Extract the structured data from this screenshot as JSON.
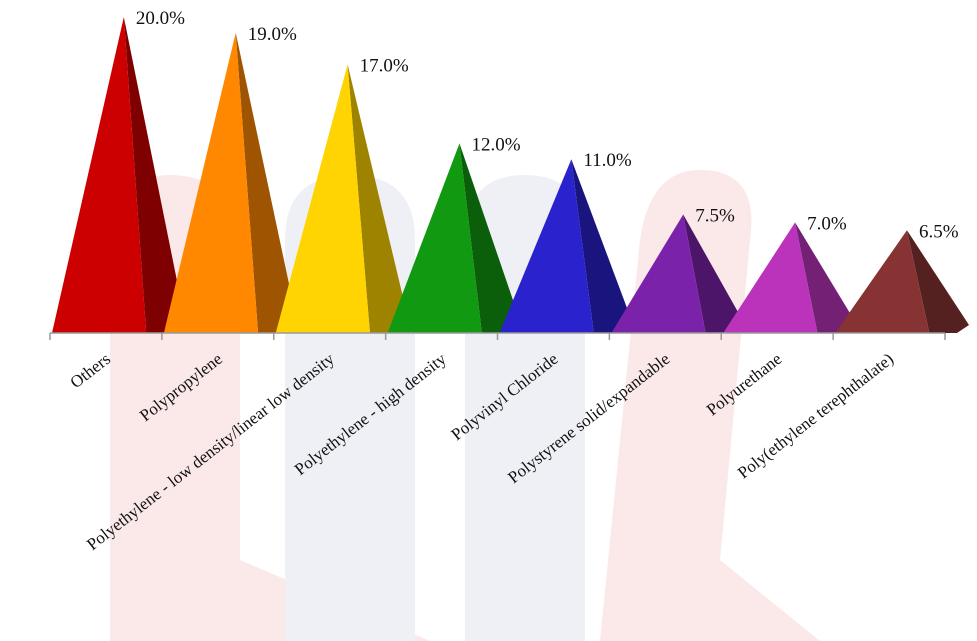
{
  "chart_data": {
    "type": "bar",
    "style": "pyramid",
    "categories": [
      "Others",
      "Polypropylene",
      "Polyethylene - low density/linear low density",
      "Polyethylene - high density",
      "Polyvinyl Chloride",
      "Polystyrene solid/expandable",
      "Polyurethane",
      "Poly(ethylene terephthalate)"
    ],
    "values": [
      20.0,
      19.0,
      17.0,
      12.0,
      11.0,
      7.5,
      7.0,
      6.5
    ],
    "data_labels": [
      "20.0%",
      "19.0%",
      "17.0%",
      "12.0%",
      "11.0%",
      "7.5%",
      "7.0%",
      "6.5%"
    ],
    "colors": [
      "#cc0000",
      "#ff8800",
      "#ffd400",
      "#119911",
      "#2a22cc",
      "#7a22aa",
      "#bb33bb",
      "#883333"
    ],
    "ylim": [
      0,
      20
    ],
    "grid": false,
    "legend": "none",
    "xlabel": "",
    "ylabel": ""
  }
}
